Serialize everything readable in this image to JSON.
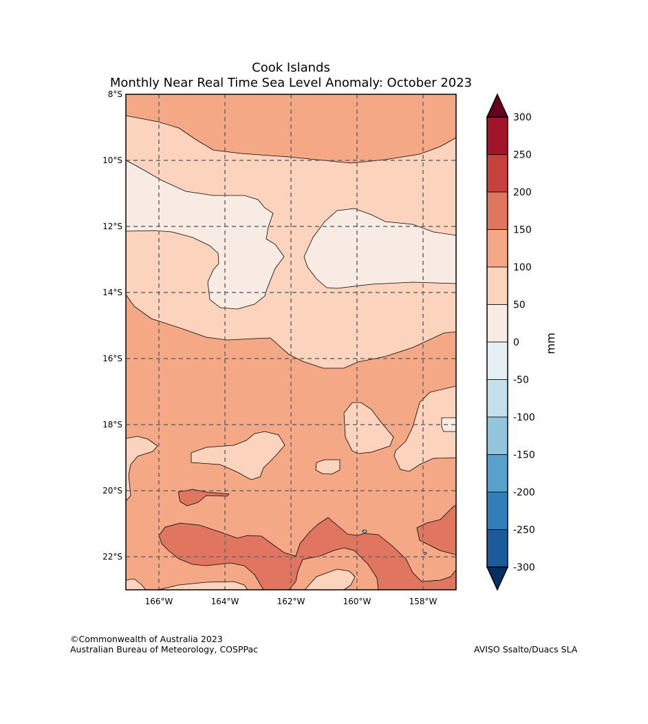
{
  "title": {
    "line1": "Cook Islands",
    "line2": "Monthly Near Real Time Sea Level Anomaly: October 2023"
  },
  "map": {
    "lon_ticks": [
      "166°W",
      "164°W",
      "162°W",
      "160°W",
      "158°W"
    ],
    "lat_ticks": [
      "8°S",
      "10°S",
      "12°S",
      "14°S",
      "16°S",
      "18°S",
      "20°S",
      "22°S"
    ],
    "lon_range": [
      -167,
      -157
    ],
    "lat_range": [
      -23,
      -8
    ]
  },
  "colorbar": {
    "unit": "mm",
    "labels": [
      "300",
      "250",
      "200",
      "150",
      "100",
      "50",
      "0",
      "-50",
      "-100",
      "-150",
      "-200",
      "-250",
      "-300"
    ],
    "colors": [
      "#a2142a",
      "#c6403e",
      "#e0765f",
      "#f4a886",
      "#fcd3bc",
      "#f8ebe4",
      "#e6eff3",
      "#c5dfec",
      "#93c5dc",
      "#58a1cb",
      "#327ebb",
      "#1b5b9b"
    ],
    "over_color": "#67001f",
    "under_color": "#053061"
  },
  "footer": {
    "copyright": "©Commonwealth of Australia 2023",
    "org": "Australian Bureau of Meteorology, COSPPac",
    "source": "AVISO Ssalto/Duacs SLA"
  }
}
